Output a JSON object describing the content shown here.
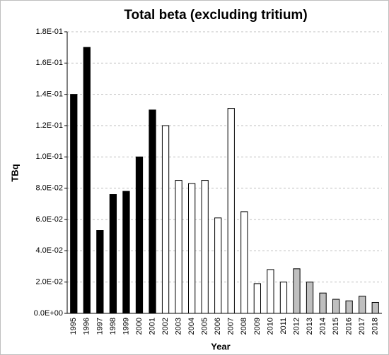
{
  "chart_data": {
    "type": "bar",
    "title": "Total beta (excluding tritium)",
    "x_label": "Year",
    "y_label": "TBq",
    "categories": [
      "1995",
      "1996",
      "1997",
      "1998",
      "1999",
      "2000",
      "2001",
      "2002",
      "2003",
      "2004",
      "2005",
      "2006",
      "2007",
      "2008",
      "2009",
      "2010",
      "2011",
      "2012",
      "2013",
      "2014",
      "2015",
      "2016",
      "2017",
      "2018"
    ],
    "values": [
      0.14,
      0.17,
      0.053,
      0.076,
      0.078,
      0.1,
      0.13,
      0.12,
      0.085,
      0.083,
      0.085,
      0.061,
      0.131,
      0.065,
      0.019,
      0.028,
      0.02,
      0.0285,
      0.02,
      0.013,
      0.009,
      0.008,
      0.011,
      0.007
    ],
    "colors": [
      "#000000",
      "#000000",
      "#000000",
      "#000000",
      "#000000",
      "#000000",
      "#000000",
      "#ffffff",
      "#ffffff",
      "#ffffff",
      "#ffffff",
      "#ffffff",
      "#ffffff",
      "#ffffff",
      "#ffffff",
      "#ffffff",
      "#ffffff",
      "#bfbfbf",
      "#bfbfbf",
      "#bfbfbf",
      "#bfbfbf",
      "#bfbfbf",
      "#bfbfbf",
      "#bfbfbf"
    ],
    "ylim": [
      0,
      0.18
    ],
    "yticks": [
      {
        "value": 0,
        "label": "0.0E+00"
      },
      {
        "value": 0.02,
        "label": "2.0E-02"
      },
      {
        "value": 0.04,
        "label": "4.0E-02"
      },
      {
        "value": 0.06,
        "label": "6.0E-02"
      },
      {
        "value": 0.08,
        "label": "8.0E-02"
      },
      {
        "value": 0.1,
        "label": "1.0E-01"
      },
      {
        "value": 0.12,
        "label": "1.2E-01"
      },
      {
        "value": 0.14,
        "label": "1.4E-01"
      },
      {
        "value": 0.16,
        "label": "1.6E-01"
      },
      {
        "value": 0.18,
        "label": "1.8E-01"
      }
    ],
    "grid": true
  }
}
